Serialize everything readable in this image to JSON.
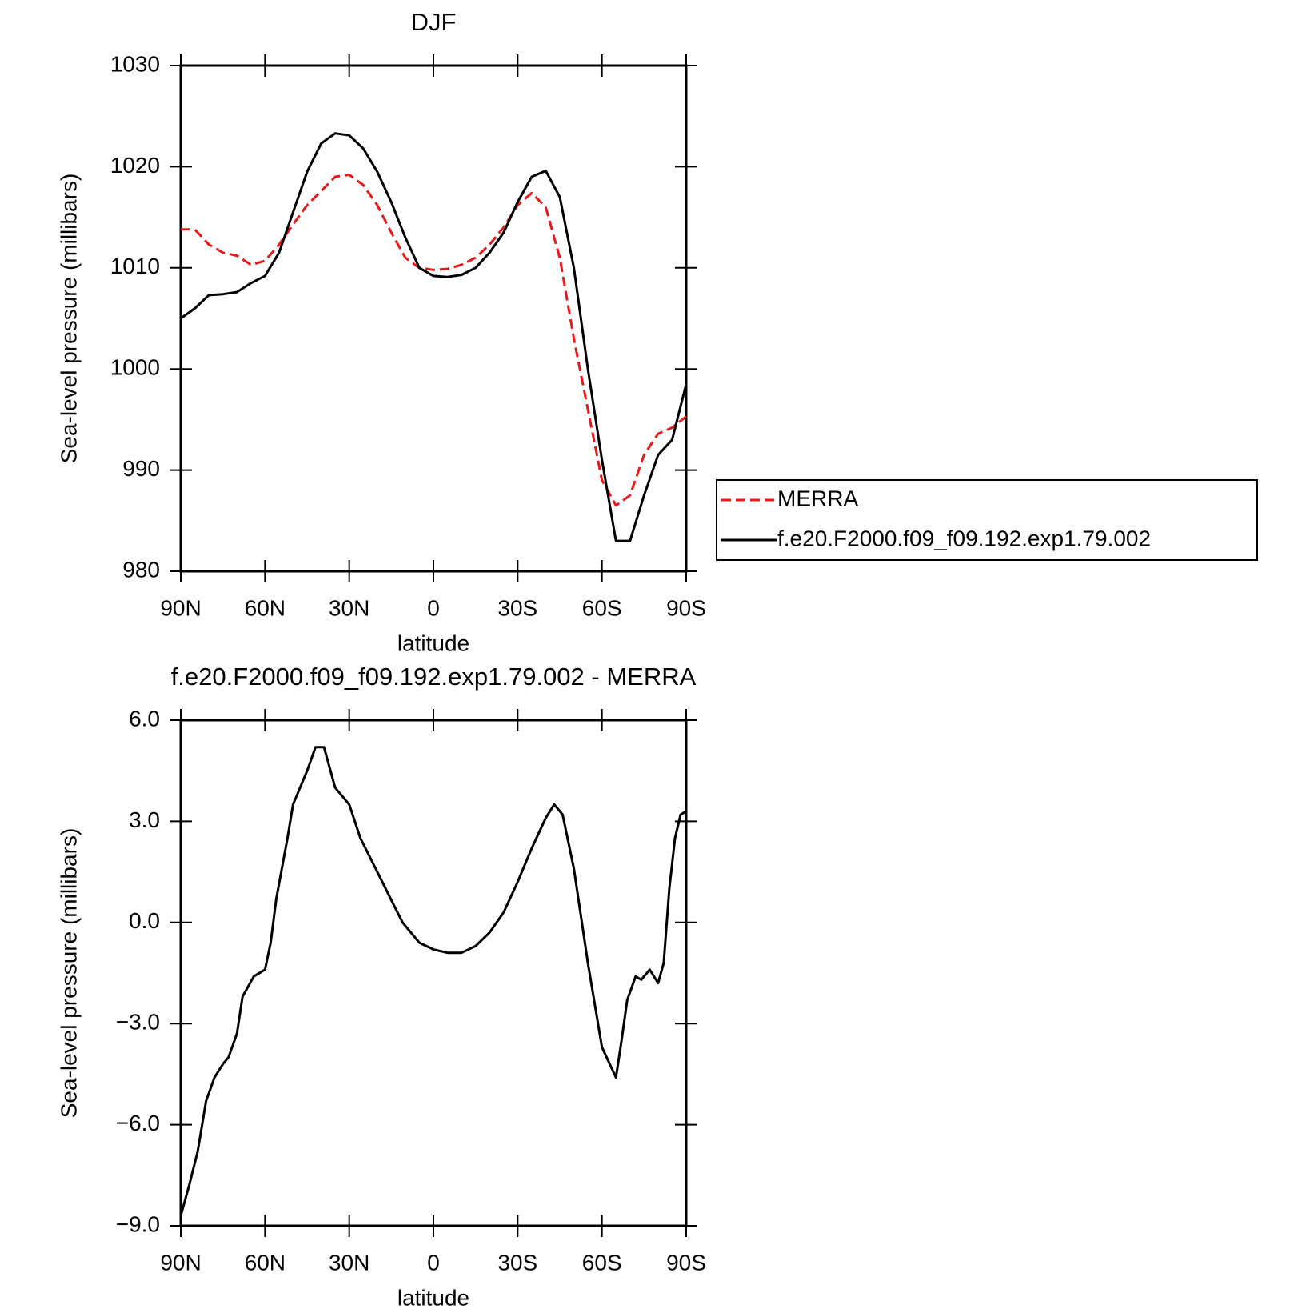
{
  "chart_data": [
    {
      "type": "line",
      "title": "DJF",
      "xlabel": "latitude",
      "ylabel": "Sea-level pressure (millibars)",
      "x": [
        90,
        85,
        80,
        75,
        70,
        65,
        60,
        55,
        50,
        45,
        40,
        35,
        30,
        25,
        20,
        15,
        10,
        5,
        0,
        -5,
        -10,
        -15,
        -20,
        -25,
        -30,
        -35,
        -40,
        -45,
        -50,
        -55,
        -60,
        -65,
        -70,
        -75,
        -80,
        -85,
        -90
      ],
      "series": [
        {
          "name": "MERRA",
          "color": "#e41a1c",
          "linestyle": "dashed",
          "values": [
            1013.8,
            1013.8,
            1012.3,
            1011.5,
            1011.2,
            1010.3,
            1010.7,
            1012.3,
            1014.3,
            1016.2,
            1017.6,
            1019,
            1019.2,
            1018.2,
            1016.2,
            1013.5,
            1011,
            1010,
            1009.8,
            1009.9,
            1010.3,
            1011,
            1012.3,
            1014,
            1016.2,
            1017.4,
            1016,
            1011,
            1003,
            996,
            989,
            986.5,
            987.5,
            991.5,
            993.6,
            994.2,
            995.3
          ]
        },
        {
          "name": "f.e20.F2000.f09_f09.192.exp1.79.002",
          "color": "#000000",
          "linestyle": "solid",
          "values": [
            1005,
            1006,
            1007.3,
            1007.4,
            1007.6,
            1008.5,
            1009.2,
            1011.5,
            1015.5,
            1019.5,
            1022.3,
            1023.3,
            1023.1,
            1021.8,
            1019.5,
            1016.5,
            1013,
            1010,
            1009.2,
            1009.1,
            1009.3,
            1010,
            1011.5,
            1013.5,
            1016.5,
            1019,
            1019.6,
            1017,
            1010,
            1000,
            991,
            983,
            983,
            987.5,
            991.5,
            993,
            998.5
          ]
        }
      ],
      "xlim": [
        90,
        -90
      ],
      "xticks": [
        {
          "value": 90,
          "label": "90N"
        },
        {
          "value": 60,
          "label": "60N"
        },
        {
          "value": 30,
          "label": "30N"
        },
        0,
        {
          "value": -30,
          "label": "30S"
        },
        {
          "value": -60,
          "label": "60S"
        },
        {
          "value": -90,
          "label": "90S"
        }
      ],
      "ylim": [
        980,
        1030
      ],
      "yticks": [
        980,
        990,
        1000,
        1010,
        1020,
        1030
      ],
      "legend": "right"
    },
    {
      "type": "line",
      "title": "f.e20.F2000.f09_f09.192.exp1.79.002 - MERRA",
      "xlabel": "latitude",
      "ylabel": "Sea-level pressure (millibars)",
      "x": [
        90,
        87,
        84,
        81,
        78,
        75,
        73,
        70,
        68,
        64,
        60,
        58,
        56,
        52,
        50,
        45,
        42,
        39,
        35,
        30,
        26,
        20,
        14,
        11,
        5,
        0,
        -5,
        -10,
        -15,
        -20,
        -25,
        -30,
        -35,
        -40,
        -43,
        -46,
        -50,
        -55,
        -60,
        -65,
        -67,
        -69,
        -72,
        -74,
        -77,
        -80,
        -82,
        -84,
        -86,
        -88,
        -90
      ],
      "values": [
        -8.7,
        -7.8,
        -6.8,
        -5.3,
        -4.6,
        -4.2,
        -4.0,
        -3.3,
        -2.2,
        -1.6,
        -1.4,
        -0.6,
        0.7,
        2.5,
        3.5,
        4.5,
        5.2,
        5.2,
        4.0,
        3.5,
        2.5,
        1.5,
        0.5,
        0,
        -0.6,
        -0.8,
        -0.9,
        -0.9,
        -0.7,
        -0.3,
        0.3,
        1.2,
        2.2,
        3.1,
        3.5,
        3.2,
        1.6,
        -1.2,
        -3.7,
        -4.6,
        -3.5,
        -2.3,
        -1.6,
        -1.7,
        -1.4,
        -1.8,
        -1.2,
        1.0,
        2.5,
        3.2,
        3.3
      ],
      "color": "#000000",
      "xlim": [
        90,
        -90
      ],
      "xticks": [
        {
          "value": 90,
          "label": "90N"
        },
        {
          "value": 60,
          "label": "60N"
        },
        {
          "value": 30,
          "label": "30N"
        },
        0,
        {
          "value": -30,
          "label": "30S"
        },
        {
          "value": -60,
          "label": "60S"
        },
        {
          "value": -90,
          "label": "90S"
        }
      ],
      "ylim": [
        -9,
        6
      ],
      "yticks": [
        {
          "value": -9,
          "label": "−9.0"
        },
        {
          "value": -6,
          "label": "−6.0"
        },
        {
          "value": -3,
          "label": "−3.0"
        },
        {
          "value": 0,
          "label": "0.0"
        },
        {
          "value": 3,
          "label": "3.0"
        },
        {
          "value": 6,
          "label": "6.0"
        }
      ]
    }
  ]
}
